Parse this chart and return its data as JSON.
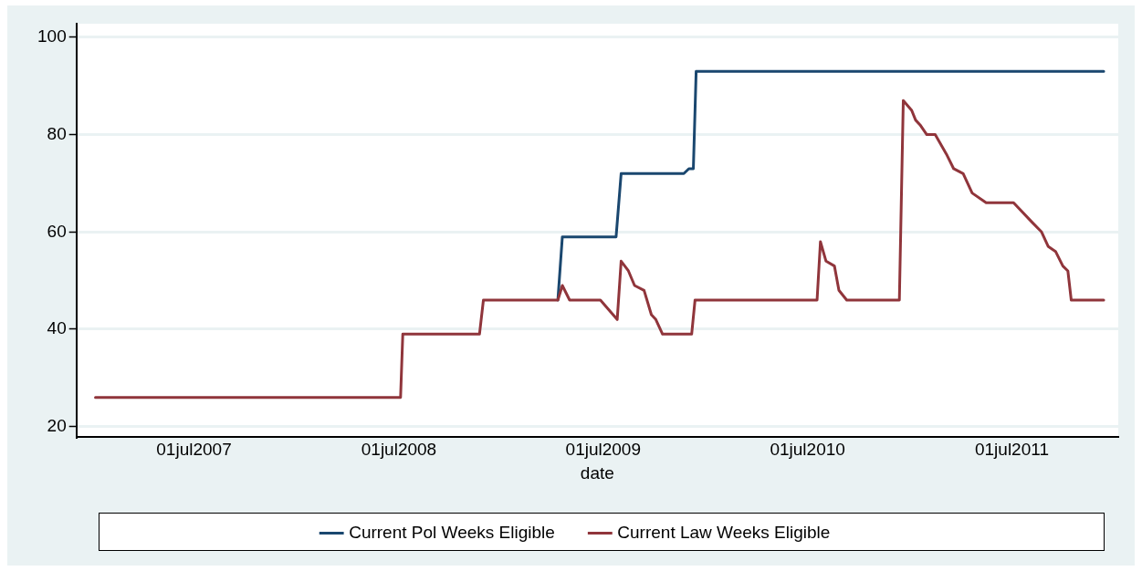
{
  "chart_data": {
    "type": "line",
    "xlabel": "date",
    "legend": "bottom",
    "grid": "y",
    "marker": "none",
    "line_style": "solid",
    "xlim": [
      "2006-12-03",
      "2012-01-07"
    ],
    "ylim": [
      17.8,
      102.8
    ],
    "xticks": [
      {
        "value": "2007-07-01",
        "label": "01jul2007"
      },
      {
        "value": "2008-07-01",
        "label": "01jul2008"
      },
      {
        "value": "2009-07-01",
        "label": "01jul2009"
      },
      {
        "value": "2010-07-01",
        "label": "01jul2010"
      },
      {
        "value": "2011-07-01",
        "label": "01jul2011"
      }
    ],
    "yticks": [
      20,
      40,
      60,
      80,
      100
    ],
    "series": [
      {
        "name": "Current Pol Weeks Eligible",
        "color": "#1a476f",
        "x": [
          "2009-04-11",
          "2009-04-19",
          "2009-07-24",
          "2009-08-02",
          "2009-11-22",
          "2009-12-01",
          "2009-12-09",
          "2009-12-14",
          "2011-12-12"
        ],
        "values": [
          46,
          59,
          59,
          72,
          72,
          73,
          73,
          93,
          93
        ]
      },
      {
        "name": "Current Law Weeks Eligible",
        "color": "#90353b",
        "x": [
          "2007-01-06",
          "2008-07-04",
          "2008-07-08",
          "2008-11-22",
          "2008-11-29",
          "2009-04-11",
          "2009-04-19",
          "2009-05-02",
          "2009-06-26",
          "2009-07-26",
          "2009-08-02",
          "2009-08-15",
          "2009-08-26",
          "2009-09-12",
          "2009-09-25",
          "2009-10-03",
          "2009-10-15",
          "2009-12-06",
          "2009-12-12",
          "2010-07-18",
          "2010-07-24",
          "2010-08-03",
          "2010-08-18",
          "2010-08-26",
          "2010-09-09",
          "2010-12-12",
          "2010-12-19",
          "2011-01-03",
          "2011-01-10",
          "2011-01-18",
          "2011-01-30",
          "2011-02-14",
          "2011-03-06",
          "2011-03-19",
          "2011-04-05",
          "2011-04-21",
          "2011-05-16",
          "2011-07-04",
          "2011-08-06",
          "2011-08-23",
          "2011-09-04",
          "2011-09-17",
          "2011-09-30",
          "2011-10-09",
          "2011-10-15",
          "2011-12-12"
        ],
        "values": [
          26,
          26,
          39,
          39,
          46,
          46,
          49,
          46,
          46,
          42,
          54,
          52,
          49,
          48,
          43,
          42,
          39,
          39,
          46,
          46,
          58,
          54,
          53,
          48,
          46,
          46,
          87,
          85,
          83,
          82,
          80,
          80,
          76,
          73,
          72,
          68,
          66,
          66,
          62,
          60,
          57,
          56,
          53,
          52,
          46,
          46
        ]
      }
    ]
  }
}
